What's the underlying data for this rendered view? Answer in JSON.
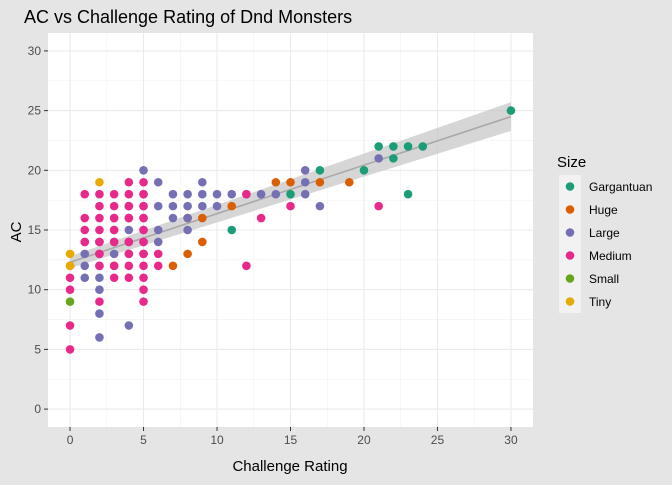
{
  "chart_data": {
    "type": "scatter",
    "title": "AC vs Challenge Rating of Dnd Monsters",
    "xlabel": "Challenge Rating",
    "ylabel": "AC",
    "xlim": [
      -1.5,
      31.5
    ],
    "ylim": [
      -1.5,
      31.5
    ],
    "x_ticks": [
      0,
      5,
      10,
      15,
      20,
      25,
      30
    ],
    "y_ticks": [
      0,
      5,
      10,
      15,
      20,
      25,
      30
    ],
    "grid": true,
    "legend_position": "right",
    "legend_title": "Size",
    "trend": {
      "method": "linear fit with confidence band",
      "x": [
        0,
        30
      ],
      "y": [
        12.3,
        24.5
      ],
      "band_halfwidth_low": 0.5,
      "band_halfwidth_high": 1.2
    },
    "series": [
      {
        "name": "Gargantuan",
        "color": "#1b9e77",
        "points": [
          [
            11,
            15
          ],
          [
            15,
            18
          ],
          [
            17,
            20
          ],
          [
            20,
            20
          ],
          [
            21,
            22
          ],
          [
            22,
            21
          ],
          [
            22,
            22
          ],
          [
            23,
            22
          ],
          [
            24,
            22
          ],
          [
            23,
            18
          ],
          [
            30,
            25
          ]
        ]
      },
      {
        "name": "Huge",
        "color": "#d95f02",
        "points": [
          [
            3,
            12
          ],
          [
            7,
            12
          ],
          [
            8,
            13
          ],
          [
            8,
            16
          ],
          [
            9,
            14
          ],
          [
            9,
            16
          ],
          [
            11,
            17
          ],
          [
            14,
            19
          ],
          [
            15,
            19
          ],
          [
            17,
            19
          ],
          [
            19,
            19
          ]
        ]
      },
      {
        "name": "Large",
        "color": "#7570b3",
        "points": [
          [
            1,
            11
          ],
          [
            1,
            12
          ],
          [
            1,
            13
          ],
          [
            1,
            14
          ],
          [
            2,
            6
          ],
          [
            2,
            8
          ],
          [
            2,
            10
          ],
          [
            2,
            11
          ],
          [
            2,
            12
          ],
          [
            2,
            13
          ],
          [
            2,
            14
          ],
          [
            3,
            13
          ],
          [
            3,
            14
          ],
          [
            3,
            15
          ],
          [
            3,
            16
          ],
          [
            4,
            7
          ],
          [
            4,
            13
          ],
          [
            4,
            14
          ],
          [
            4,
            15
          ],
          [
            4,
            16
          ],
          [
            4,
            17
          ],
          [
            5,
            13
          ],
          [
            5,
            14
          ],
          [
            5,
            15
          ],
          [
            5,
            16
          ],
          [
            5,
            17
          ],
          [
            5,
            18
          ],
          [
            5,
            20
          ],
          [
            6,
            14
          ],
          [
            6,
            15
          ],
          [
            6,
            17
          ],
          [
            6,
            19
          ],
          [
            7,
            16
          ],
          [
            7,
            17
          ],
          [
            7,
            18
          ],
          [
            8,
            15
          ],
          [
            8,
            16
          ],
          [
            8,
            17
          ],
          [
            8,
            18
          ],
          [
            9,
            17
          ],
          [
            9,
            18
          ],
          [
            9,
            19
          ],
          [
            10,
            17
          ],
          [
            10,
            18
          ],
          [
            11,
            18
          ],
          [
            12,
            18
          ],
          [
            13,
            18
          ],
          [
            14,
            18
          ],
          [
            16,
            18
          ],
          [
            16,
            19
          ],
          [
            16,
            20
          ],
          [
            17,
            17
          ],
          [
            21,
            21
          ]
        ]
      },
      {
        "name": "Medium",
        "color": "#e7298a",
        "points": [
          [
            0,
            5
          ],
          [
            0,
            7
          ],
          [
            0,
            10
          ],
          [
            0,
            11
          ],
          [
            0,
            12
          ],
          [
            1,
            14
          ],
          [
            1,
            15
          ],
          [
            1,
            16
          ],
          [
            1,
            18
          ],
          [
            2,
            9
          ],
          [
            2,
            12
          ],
          [
            2,
            13
          ],
          [
            2,
            14
          ],
          [
            2,
            15
          ],
          [
            2,
            16
          ],
          [
            2,
            17
          ],
          [
            2,
            18
          ],
          [
            3,
            11
          ],
          [
            3,
            12
          ],
          [
            3,
            14
          ],
          [
            3,
            15
          ],
          [
            3,
            16
          ],
          [
            3,
            17
          ],
          [
            3,
            18
          ],
          [
            4,
            11
          ],
          [
            4,
            12
          ],
          [
            4,
            13
          ],
          [
            4,
            14
          ],
          [
            4,
            16
          ],
          [
            4,
            17
          ],
          [
            4,
            18
          ],
          [
            4,
            19
          ],
          [
            5,
            9
          ],
          [
            5,
            10
          ],
          [
            5,
            11
          ],
          [
            5,
            12
          ],
          [
            5,
            13
          ],
          [
            5,
            14
          ],
          [
            5,
            15
          ],
          [
            5,
            16
          ],
          [
            5,
            17
          ],
          [
            5,
            18
          ],
          [
            5,
            19
          ],
          [
            6,
            12
          ],
          [
            6,
            13
          ],
          [
            12,
            12
          ],
          [
            12,
            18
          ],
          [
            13,
            16
          ],
          [
            15,
            17
          ],
          [
            21,
            17
          ]
        ]
      },
      {
        "name": "Small",
        "color": "#66a61e",
        "points": [
          [
            0,
            9
          ]
        ]
      },
      {
        "name": "Tiny",
        "color": "#e6ab02",
        "points": [
          [
            0,
            12
          ],
          [
            0,
            13
          ],
          [
            2,
            19
          ]
        ]
      }
    ]
  }
}
